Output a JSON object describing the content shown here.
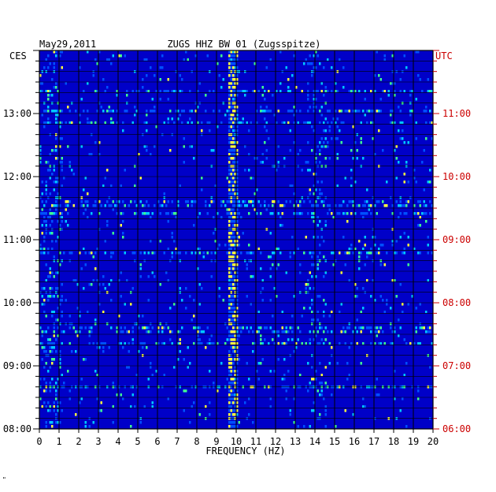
{
  "chart_data": {
    "type": "heatmap",
    "title": "ZUGS HHZ BW 01 (Zugsspitze)",
    "date": "May29,2011",
    "xlabel": "FREQUENCY (HZ)",
    "left_axis_title": "CES",
    "right_axis_title": "UTC",
    "xlim": [
      0,
      20
    ],
    "x_ticks": [
      "0",
      "1",
      "2",
      "3",
      "4",
      "5",
      "6",
      "7",
      "8",
      "9",
      "10",
      "11",
      "12",
      "13",
      "14",
      "15",
      "16",
      "17",
      "18",
      "19",
      "20"
    ],
    "left_time_ticks": [
      {
        "label": "08:00",
        "hour": 8
      },
      {
        "label": "09:00",
        "hour": 9
      },
      {
        "label": "10:00",
        "hour": 10
      },
      {
        "label": "11:00",
        "hour": 11
      },
      {
        "label": "12:00",
        "hour": 12
      },
      {
        "label": "13:00",
        "hour": 13
      }
    ],
    "right_time_ticks": [
      {
        "label": "06:00",
        "hour": 8
      },
      {
        "label": "07:00",
        "hour": 9
      },
      {
        "label": "08:00",
        "hour": 10
      },
      {
        "label": "09:00",
        "hour": 11
      },
      {
        "label": "10:00",
        "hour": 12
      },
      {
        "label": "11:00",
        "hour": 13
      }
    ],
    "time_range_hours": [
      8,
      14
    ],
    "colors": {
      "background": "#0000c8",
      "left_axis": "#000000",
      "right_axis": "#cc0000",
      "grid": "#000000"
    },
    "features": {
      "dominant_band_hz": [
        9.6,
        10.1
      ],
      "secondary_band_hz": [
        13.6,
        14.6
      ]
    }
  },
  "footer_mark": "\""
}
